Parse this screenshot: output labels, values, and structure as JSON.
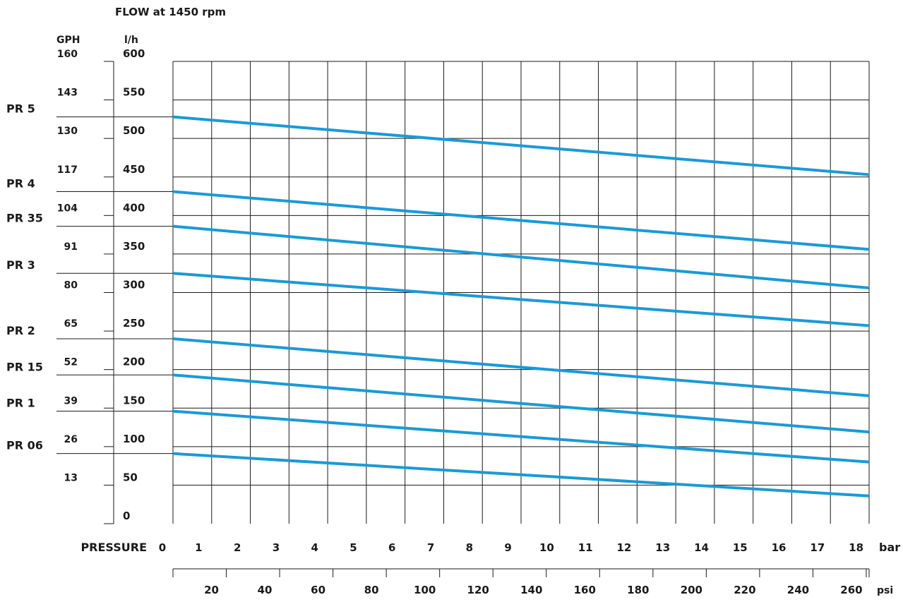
{
  "chart_data": {
    "type": "line",
    "title": "FLOW at 1450 rpm",
    "y_left_unit": "GPH",
    "y_right_unit": "l/h",
    "xlabel": "PRESSURE",
    "x_unit": "bar",
    "x2_unit": "psi",
    "xlim": [
      0,
      18
    ],
    "ylim": [
      0,
      600
    ],
    "x_ticks": [
      0,
      1,
      2,
      3,
      4,
      5,
      6,
      7,
      8,
      9,
      10,
      11,
      12,
      13,
      14,
      15,
      16,
      17,
      18
    ],
    "y_ticks": [
      0,
      50,
      100,
      150,
      200,
      250,
      300,
      350,
      400,
      450,
      500,
      550,
      600
    ],
    "gph_labels": [
      {
        "value": 160,
        "at_lh": 600
      },
      {
        "value": 143,
        "at_lh": 550
      },
      {
        "value": 130,
        "at_lh": 500
      },
      {
        "value": 117,
        "at_lh": 450
      },
      {
        "value": 104,
        "at_lh": 400
      },
      {
        "value": 91,
        "at_lh": 350
      },
      {
        "value": 80,
        "at_lh": 300
      },
      {
        "value": 65,
        "at_lh": 250
      },
      {
        "value": 52,
        "at_lh": 200
      },
      {
        "value": 39,
        "at_lh": 150
      },
      {
        "value": 26,
        "at_lh": 100
      },
      {
        "value": 13,
        "at_lh": 50
      }
    ],
    "psi_ticks": [
      20,
      40,
      60,
      80,
      100,
      120,
      140,
      160,
      180,
      200,
      220,
      240,
      260
    ],
    "grid": true,
    "series": [
      {
        "name": "PR 5",
        "x": [
          0,
          18
        ],
        "y": [
          528,
          453
        ]
      },
      {
        "name": "PR 4",
        "x": [
          0,
          18
        ],
        "y": [
          431,
          356
        ]
      },
      {
        "name": "PR 35",
        "x": [
          0,
          18
        ],
        "y": [
          386,
          306
        ]
      },
      {
        "name": "PR 3",
        "x": [
          0,
          18
        ],
        "y": [
          325,
          257
        ]
      },
      {
        "name": "PR 2",
        "x": [
          0,
          18
        ],
        "y": [
          240,
          166
        ]
      },
      {
        "name": "PR 15",
        "x": [
          0,
          18
        ],
        "y": [
          193,
          119
        ]
      },
      {
        "name": "PR 1",
        "x": [
          0,
          18
        ],
        "y": [
          146,
          80
        ]
      },
      {
        "name": "PR 06",
        "x": [
          0,
          18
        ],
        "y": [
          91,
          36
        ]
      }
    ],
    "line_color": "#1a9ad6"
  }
}
